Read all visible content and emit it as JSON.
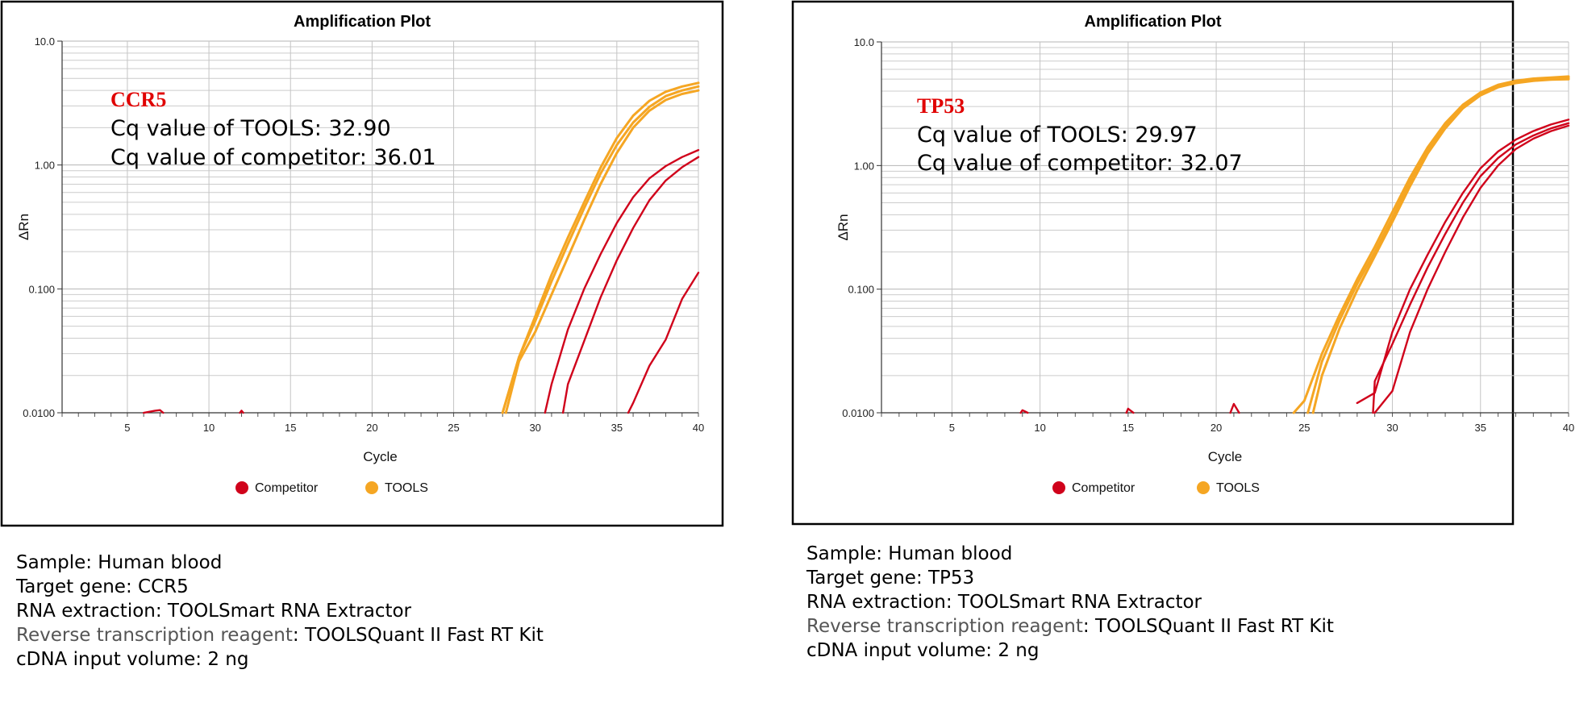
{
  "colors": {
    "competitor": "#d0021b",
    "tools": "#f5a623",
    "gene_label": "#e00000",
    "grid": "#cccccc",
    "frame": "#000000"
  },
  "chart_data": [
    {
      "type": "line",
      "title": "Amplification Plot",
      "xlabel": "Cycle",
      "ylabel": "ΔRn",
      "xlim": [
        1,
        40
      ],
      "ylim": [
        0.01,
        10.0
      ],
      "yscale": "log",
      "xticks": [
        "5",
        "10",
        "15",
        "20",
        "25",
        "30",
        "35",
        "40"
      ],
      "yticks": [
        "10.0",
        "1.00",
        "0.100",
        "0.0100"
      ],
      "grid": true,
      "legend": [
        "Competitor",
        "TOOLS"
      ],
      "legend_position": "bottom",
      "annotation": {
        "gene": "CCR5",
        "tools_cq": "Cq value of TOOLS: 32.90",
        "competitor_cq": "Cq value of competitor: 36.01"
      },
      "series": [
        {
          "name": "TOOLS",
          "group": "tools",
          "points": [
            [
              28.0,
              0.01
            ],
            [
              29.0,
              0.028
            ],
            [
              30.0,
              0.06
            ],
            [
              31.0,
              0.13
            ],
            [
              32.0,
              0.26
            ],
            [
              33.0,
              0.5
            ],
            [
              34.0,
              0.95
            ],
            [
              35.0,
              1.65
            ],
            [
              36.0,
              2.5
            ],
            [
              37.0,
              3.3
            ],
            [
              38.0,
              3.9
            ],
            [
              39.0,
              4.3
            ],
            [
              40.0,
              4.6
            ]
          ]
        },
        {
          "name": "TOOLS",
          "group": "tools",
          "points": [
            [
              28.0,
              0.01
            ],
            [
              29.0,
              0.028
            ],
            [
              30.0,
              0.055
            ],
            [
              31.0,
              0.115
            ],
            [
              32.0,
              0.23
            ],
            [
              33.0,
              0.45
            ],
            [
              34.0,
              0.85
            ],
            [
              35.0,
              1.45
            ],
            [
              36.0,
              2.2
            ],
            [
              37.0,
              2.95
            ],
            [
              38.0,
              3.6
            ],
            [
              39.0,
              4.0
            ],
            [
              40.0,
              4.3
            ]
          ]
        },
        {
          "name": "TOOLS",
          "group": "tools",
          "points": [
            [
              28.2,
              0.01
            ],
            [
              29.0,
              0.026
            ],
            [
              30.0,
              0.045
            ],
            [
              31.0,
              0.09
            ],
            [
              32.0,
              0.18
            ],
            [
              33.0,
              0.36
            ],
            [
              34.0,
              0.7
            ],
            [
              35.0,
              1.25
            ],
            [
              36.0,
              2.0
            ],
            [
              37.0,
              2.75
            ],
            [
              38.0,
              3.35
            ],
            [
              39.0,
              3.75
            ],
            [
              40.0,
              4.0
            ]
          ]
        },
        {
          "name": "Competitor",
          "group": "competitor",
          "points": [
            [
              30.6,
              0.01
            ],
            [
              31.0,
              0.017
            ],
            [
              32.0,
              0.047
            ],
            [
              33.0,
              0.1
            ],
            [
              34.0,
              0.19
            ],
            [
              35.0,
              0.34
            ],
            [
              36.0,
              0.55
            ],
            [
              37.0,
              0.78
            ],
            [
              38.0,
              0.98
            ],
            [
              39.0,
              1.16
            ],
            [
              40.0,
              1.32
            ]
          ]
        },
        {
          "name": "Competitor",
          "group": "competitor",
          "points": [
            [
              31.7,
              0.01
            ],
            [
              32.0,
              0.017
            ],
            [
              33.0,
              0.038
            ],
            [
              34.0,
              0.085
            ],
            [
              35.0,
              0.17
            ],
            [
              36.0,
              0.31
            ],
            [
              37.0,
              0.52
            ],
            [
              38.0,
              0.75
            ],
            [
              39.0,
              0.96
            ],
            [
              40.0,
              1.16
            ]
          ]
        },
        {
          "name": "Competitor",
          "group": "competitor",
          "points": [
            [
              35.7,
              0.01
            ],
            [
              36.0,
              0.012
            ],
            [
              37.0,
              0.024
            ],
            [
              38.0,
              0.039
            ],
            [
              39.0,
              0.083
            ],
            [
              40.0,
              0.135
            ]
          ]
        },
        {
          "name": "Competitor",
          "group": "competitor",
          "points": [
            [
              6.0,
              0.01
            ],
            [
              6.7,
              0.0104
            ],
            [
              7.0,
              0.0105
            ],
            [
              7.2,
              0.01
            ]
          ]
        },
        {
          "name": "Competitor",
          "group": "competitor",
          "points": [
            [
              11.9,
              0.01
            ],
            [
              12.0,
              0.0104
            ],
            [
              12.1,
              0.01
            ]
          ]
        }
      ]
    },
    {
      "type": "line",
      "title": "Amplification Plot",
      "xlabel": "Cycle",
      "ylabel": "ΔRn",
      "xlim": [
        1,
        40
      ],
      "ylim": [
        0.01,
        10.0
      ],
      "yscale": "log",
      "xticks": [
        "5",
        "10",
        "15",
        "20",
        "25",
        "30",
        "35",
        "40"
      ],
      "yticks": [
        "10.0",
        "1.00",
        "0.100",
        "0.0100"
      ],
      "grid": true,
      "legend": [
        "Competitor",
        "TOOLS"
      ],
      "legend_position": "bottom",
      "annotation": {
        "gene": "TP53",
        "tools_cq": "Cq value of TOOLS: 29.97",
        "competitor_cq": "Cq value of competitor: 32.07"
      },
      "series": [
        {
          "name": "TOOLS",
          "group": "tools",
          "points": [
            [
              24.4,
              0.01
            ],
            [
              25.0,
              0.0125
            ],
            [
              26.0,
              0.03
            ],
            [
              27.0,
              0.062
            ],
            [
              28.0,
              0.12
            ],
            [
              29.0,
              0.22
            ],
            [
              30.0,
              0.42
            ],
            [
              31.0,
              0.8
            ],
            [
              32.0,
              1.4
            ],
            [
              33.0,
              2.2
            ],
            [
              34.0,
              3.1
            ],
            [
              35.0,
              3.9
            ],
            [
              36.0,
              4.5
            ],
            [
              37.0,
              4.85
            ],
            [
              38.0,
              5.05
            ],
            [
              39.0,
              5.15
            ],
            [
              40.0,
              5.25
            ]
          ]
        },
        {
          "name": "TOOLS",
          "group": "tools",
          "points": [
            [
              25.2,
              0.01
            ],
            [
              26.0,
              0.026
            ],
            [
              27.0,
              0.056
            ],
            [
              28.0,
              0.11
            ],
            [
              29.0,
              0.2
            ],
            [
              30.0,
              0.38
            ],
            [
              31.0,
              0.74
            ],
            [
              32.0,
              1.32
            ],
            [
              33.0,
              2.1
            ],
            [
              34.0,
              3.0
            ],
            [
              35.0,
              3.8
            ],
            [
              36.0,
              4.4
            ],
            [
              37.0,
              4.75
            ],
            [
              38.0,
              4.95
            ],
            [
              39.0,
              5.05
            ],
            [
              40.0,
              5.1
            ]
          ]
        },
        {
          "name": "TOOLS",
          "group": "tools",
          "points": [
            [
              25.5,
              0.01
            ],
            [
              26.0,
              0.02
            ],
            [
              27.0,
              0.048
            ],
            [
              28.0,
              0.098
            ],
            [
              29.0,
              0.185
            ],
            [
              30.0,
              0.35
            ],
            [
              31.0,
              0.68
            ],
            [
              32.0,
              1.25
            ],
            [
              33.0,
              2.0
            ],
            [
              34.0,
              2.9
            ],
            [
              35.0,
              3.7
            ],
            [
              36.0,
              4.3
            ],
            [
              37.0,
              4.65
            ],
            [
              38.0,
              4.85
            ],
            [
              39.0,
              4.95
            ],
            [
              40.0,
              5.0
            ]
          ]
        },
        {
          "name": "Competitor",
          "group": "competitor",
          "points": [
            [
              28.0,
              0.012
            ],
            [
              29.0,
              0.0145
            ],
            [
              30.0,
              0.045
            ],
            [
              31.0,
              0.1
            ],
            [
              32.0,
              0.19
            ],
            [
              33.0,
              0.35
            ],
            [
              34.0,
              0.6
            ],
            [
              35.0,
              0.95
            ],
            [
              36.0,
              1.3
            ],
            [
              37.0,
              1.62
            ],
            [
              38.0,
              1.9
            ],
            [
              39.0,
              2.15
            ],
            [
              40.0,
              2.35
            ]
          ]
        },
        {
          "name": "Competitor",
          "group": "competitor",
          "points": [
            [
              28.9,
              0.01
            ],
            [
              29.0,
              0.018
            ],
            [
              30.0,
              0.036
            ],
            [
              31.0,
              0.075
            ],
            [
              32.0,
              0.15
            ],
            [
              33.0,
              0.28
            ],
            [
              34.0,
              0.5
            ],
            [
              35.0,
              0.82
            ],
            [
              36.0,
              1.15
            ],
            [
              37.0,
              1.48
            ],
            [
              38.0,
              1.75
            ],
            [
              39.0,
              2.0
            ],
            [
              40.0,
              2.2
            ]
          ]
        },
        {
          "name": "Competitor",
          "group": "competitor",
          "points": [
            [
              29.0,
              0.01
            ],
            [
              30.0,
              0.015
            ],
            [
              31.0,
              0.045
            ],
            [
              32.0,
              0.1
            ],
            [
              33.0,
              0.2
            ],
            [
              34.0,
              0.38
            ],
            [
              35.0,
              0.66
            ],
            [
              36.0,
              1.0
            ],
            [
              37.0,
              1.36
            ],
            [
              38.0,
              1.65
            ],
            [
              39.0,
              1.9
            ],
            [
              40.0,
              2.1
            ]
          ]
        },
        {
          "name": "Competitor",
          "group": "competitor",
          "points": [
            [
              8.9,
              0.01
            ],
            [
              9.0,
              0.0105
            ],
            [
              9.3,
              0.01
            ]
          ]
        },
        {
          "name": "Competitor",
          "group": "competitor",
          "points": [
            [
              14.9,
              0.01
            ],
            [
              15.0,
              0.0108
            ],
            [
              15.3,
              0.01
            ]
          ]
        },
        {
          "name": "Competitor",
          "group": "competitor",
          "points": [
            [
              20.8,
              0.01
            ],
            [
              21.0,
              0.0118
            ],
            [
              21.3,
              0.01
            ]
          ]
        }
      ]
    }
  ],
  "info": [
    {
      "sample": "Sample: Human blood",
      "target": "Target gene: CCR5",
      "extraction": "RNA extraction: TOOLSmart RNA Extractor",
      "rt_label": "Reverse transcription reagent",
      "rt_value": ": TOOLSQuant II Fast RT Kit",
      "cdna": "cDNA input volume: 2 ng"
    },
    {
      "sample": "Sample: Human blood",
      "target": "Target gene: TP53",
      "extraction": "RNA extraction: TOOLSmart RNA Extractor",
      "rt_label": "Reverse transcription reagent",
      "rt_value": ": TOOLSQuant II Fast RT Kit",
      "cdna": "cDNA input volume: 2 ng"
    }
  ]
}
